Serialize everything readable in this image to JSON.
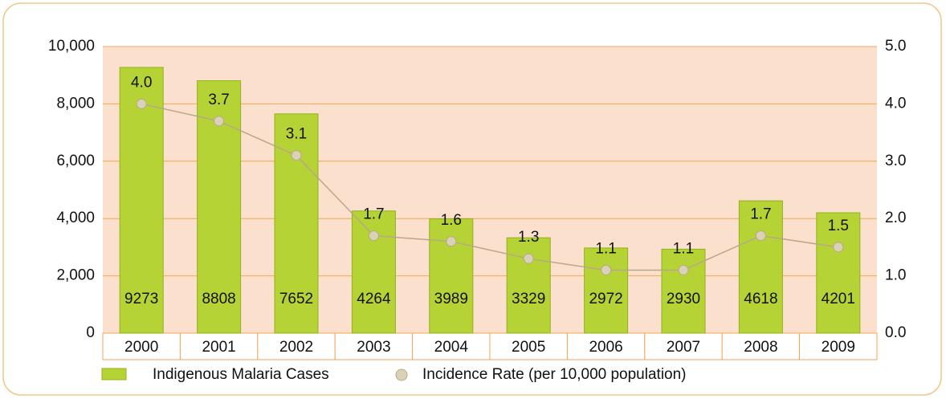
{
  "chart_data": {
    "type": "bar-line",
    "categories": [
      "2000",
      "2001",
      "2002",
      "2003",
      "2004",
      "2005",
      "2006",
      "2007",
      "2008",
      "2009"
    ],
    "series": [
      {
        "name": "Indigenous Malaria Cases",
        "color": "#b5d334",
        "type": "bar",
        "values": [
          9273,
          8808,
          7652,
          4264,
          3989,
          3329,
          2972,
          2930,
          4618,
          4201
        ]
      },
      {
        "name": "Incidence Rate (per 10,000 population)",
        "color": "#b8a888",
        "type": "line",
        "axis": "y2",
        "values": [
          4.0,
          3.7,
          3.1,
          1.7,
          1.6,
          1.3,
          1.1,
          1.1,
          1.7,
          1.5
        ],
        "value_labels": [
          "4.0",
          "3.7",
          "3.1",
          "1.7",
          "1.6",
          "1.3",
          "1.1",
          "1.1",
          "1.7",
          "1.5"
        ]
      }
    ],
    "ylim": [
      0,
      10000
    ],
    "yticks": [
      0,
      {
        "value": 2000,
        "label": "2,000"
      },
      {
        "value": 4000,
        "label": "4,000"
      },
      {
        "value": 6000,
        "label": "6,000"
      },
      {
        "value": 8000,
        "label": "8,000"
      },
      {
        "value": 10000,
        "label": "10,000"
      }
    ],
    "y2lim": [
      0,
      5
    ],
    "y2ticks": [
      {
        "value": 0,
        "label": "0.0"
      },
      {
        "value": 1,
        "label": "1.0"
      },
      {
        "value": 2,
        "label": "2.0"
      },
      {
        "value": 3,
        "label": "3.0"
      },
      {
        "value": 4,
        "label": "4.0"
      },
      {
        "value": 5,
        "label": "5.0"
      }
    ],
    "grid": true,
    "legend": "bottom"
  }
}
